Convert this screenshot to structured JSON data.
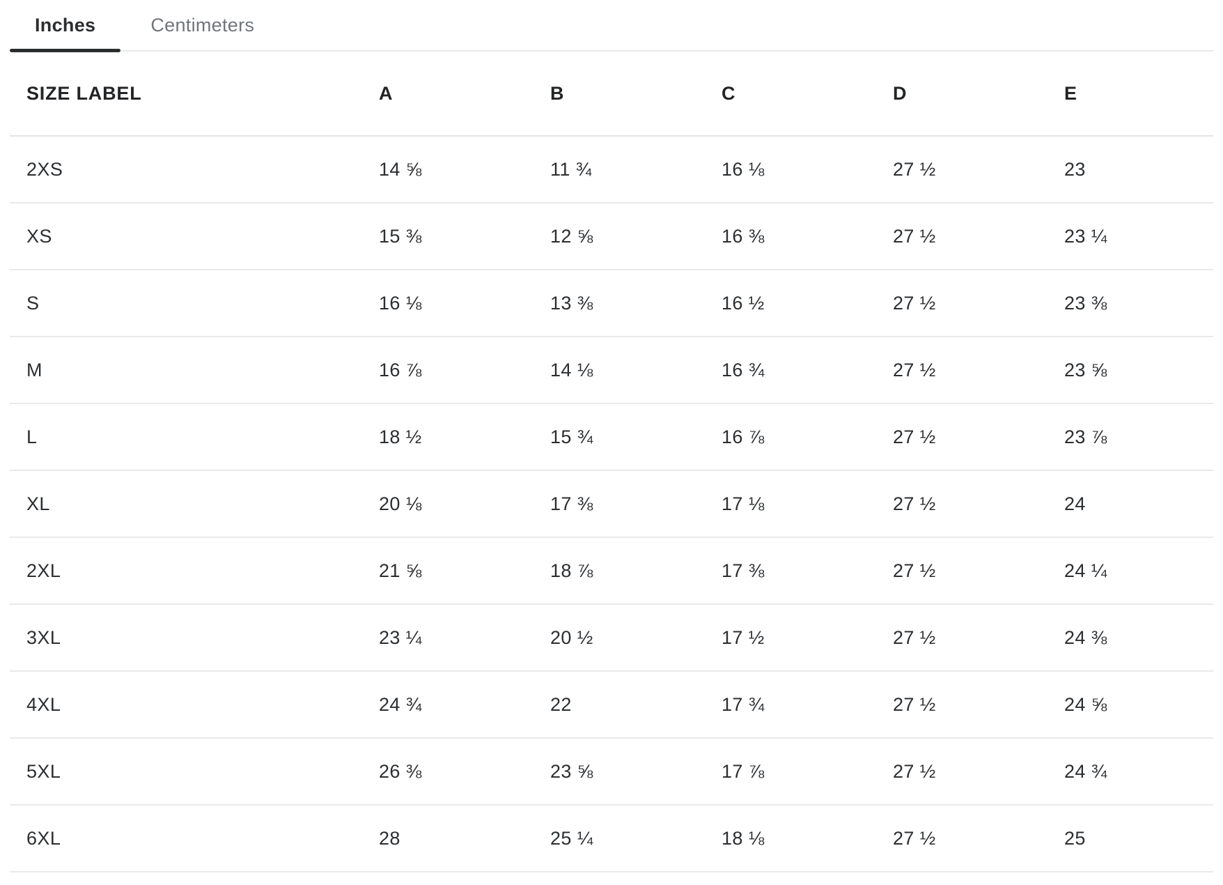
{
  "tabs": {
    "inches_label": "Inches",
    "centimeters_label": "Centimeters",
    "active": "Inches"
  },
  "table": {
    "columns": [
      "SIZE LABEL",
      "A",
      "B",
      "C",
      "D",
      "E"
    ],
    "rows": [
      {
        "label": "2XS",
        "values": [
          "14 ⅝",
          "11 ¾",
          "16 ⅛",
          "27 ½",
          "23"
        ]
      },
      {
        "label": "XS",
        "values": [
          "15 ⅜",
          "12 ⅝",
          "16 ⅜",
          "27 ½",
          "23 ¼"
        ]
      },
      {
        "label": "S",
        "values": [
          "16 ⅛",
          "13 ⅜",
          "16 ½",
          "27 ½",
          "23 ⅜"
        ]
      },
      {
        "label": "M",
        "values": [
          "16 ⅞",
          "14 ⅛",
          "16 ¾",
          "27 ½",
          "23 ⅝"
        ]
      },
      {
        "label": "L",
        "values": [
          "18 ½",
          "15 ¾",
          "16 ⅞",
          "27 ½",
          "23 ⅞"
        ]
      },
      {
        "label": "XL",
        "values": [
          "20 ⅛",
          "17 ⅜",
          "17 ⅛",
          "27 ½",
          "24"
        ]
      },
      {
        "label": "2XL",
        "values": [
          "21 ⅝",
          "18 ⅞",
          "17 ⅜",
          "27 ½",
          "24 ¼"
        ]
      },
      {
        "label": "3XL",
        "values": [
          "23 ¼",
          "20 ½",
          "17 ½",
          "27 ½",
          "24 ⅜"
        ]
      },
      {
        "label": "4XL",
        "values": [
          "24 ¾",
          "22",
          "17 ¾",
          "27 ½",
          "24 ⅝"
        ]
      },
      {
        "label": "5XL",
        "values": [
          "26 ⅜",
          "23 ⅝",
          "17 ⅞",
          "27 ½",
          "24 ¾"
        ]
      },
      {
        "label": "6XL",
        "values": [
          "28",
          "25 ¼",
          "18 ⅛",
          "27 ½",
          "25"
        ]
      }
    ]
  },
  "colors": {
    "text": "#2b2e31",
    "header_text": "#222426",
    "inactive_tab": "#71757b",
    "active_tab": "#2b2d2f",
    "divider": "#e9e9e9",
    "background": "#ffffff"
  }
}
